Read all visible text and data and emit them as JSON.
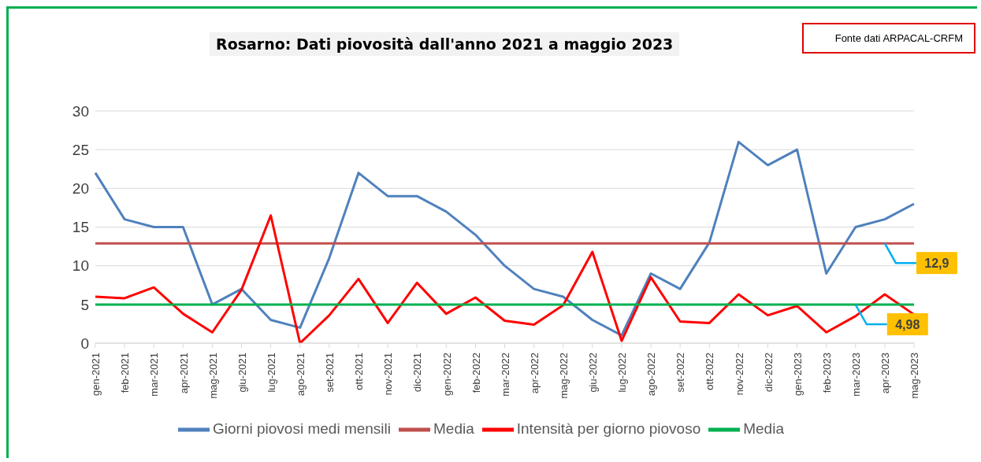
{
  "chart_data": {
    "type": "line",
    "title": "Rosarno: Dati piovosità dall'anno 2021 a  maggio 2023",
    "categories": [
      "gen-2021",
      "feb-2021",
      "mar-2021",
      "apr-2021",
      "mag-2021",
      "giu-2021",
      "lug-2021",
      "ago-2021",
      "set-2021",
      "ott-2021",
      "nov-2021",
      "dic-2021",
      "gen-2022",
      "feb-2022",
      "mar-2022",
      "apr-2022",
      "mag-2022",
      "giu-2022",
      "lug-2022",
      "ago-2022",
      "set-2022",
      "ott-2022",
      "nov-2022",
      "dic-2022",
      "gen-2023",
      "feb-2023",
      "mar-2023",
      "apr-2023",
      "mag-2023"
    ],
    "series": [
      {
        "name": "Giorni piovosi medi mensili",
        "color": "#4f81bd",
        "values": [
          22,
          16,
          15,
          15,
          5,
          7,
          3,
          2,
          11,
          22,
          19,
          19,
          17,
          14,
          10,
          7,
          6,
          3,
          1,
          9,
          7,
          13,
          26,
          23,
          25,
          9,
          15,
          16,
          18
        ]
      },
      {
        "name": "Media",
        "color": "#c0504d",
        "values": [
          12.9,
          12.9,
          12.9,
          12.9,
          12.9,
          12.9,
          12.9,
          12.9,
          12.9,
          12.9,
          12.9,
          12.9,
          12.9,
          12.9,
          12.9,
          12.9,
          12.9,
          12.9,
          12.9,
          12.9,
          12.9,
          12.9,
          12.9,
          12.9,
          12.9,
          12.9,
          12.9,
          12.9,
          12.9
        ]
      },
      {
        "name": "Intensità per giorno piovoso",
        "color": "#ff0000",
        "values": [
          6.0,
          5.8,
          7.2,
          3.8,
          1.4,
          6.9,
          16.5,
          0,
          3.6,
          8.3,
          2.6,
          7.8,
          3.8,
          5.9,
          2.9,
          2.4,
          4.9,
          11.8,
          0.3,
          8.5,
          2.8,
          2.6,
          6.3,
          3.6,
          4.8,
          1.4,
          3.5,
          6.3,
          3.7
        ]
      },
      {
        "name": "Media",
        "color": "#00b050",
        "values": [
          4.98,
          4.98,
          4.98,
          4.98,
          4.98,
          4.98,
          4.98,
          4.98,
          4.98,
          4.98,
          4.98,
          4.98,
          4.98,
          4.98,
          4.98,
          4.98,
          4.98,
          4.98,
          4.98,
          4.98,
          4.98,
          4.98,
          4.98,
          4.98,
          4.98,
          4.98,
          4.98,
          4.98,
          4.98
        ]
      }
    ],
    "ylim": [
      0,
      30
    ],
    "yticks": [
      0,
      5,
      10,
      15,
      20,
      25,
      30
    ],
    "grid": "y",
    "legend": "bottom",
    "marker": "none",
    "line_style": "solid",
    "annotations": [
      {
        "text": "12,9",
        "x": "apr-2023",
        "y": 12.9
      },
      {
        "text": "4,98",
        "x": "mar-2023",
        "y": 4.98
      },
      "Fonte dati ARPACAL-CRFM"
    ]
  }
}
